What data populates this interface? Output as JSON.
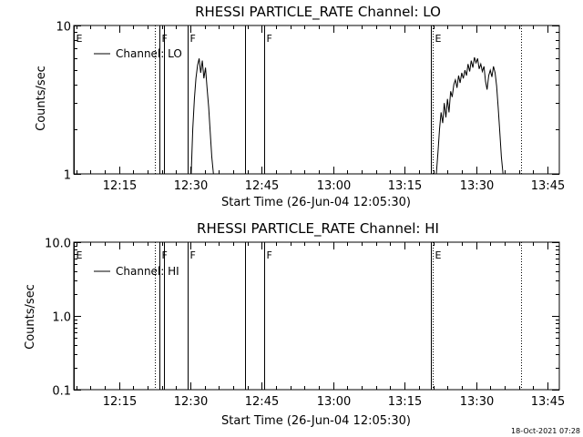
{
  "footer": {
    "timestamp": "18-Oct-2021 07:28"
  },
  "chart_data": [
    {
      "type": "line",
      "title": "RHESSI PARTICLE_RATE Channel: LO",
      "xlabel": "Start Time (26-Jun-04 12:05:30)",
      "ylabel": "Counts/sec",
      "yscale": "log",
      "ylim": [
        1,
        10
      ],
      "xlim": [
        "12:05:30",
        "13:47:30"
      ],
      "yticks": [
        {
          "value": 1,
          "label": "1"
        },
        {
          "value": 10,
          "label": "10"
        }
      ],
      "xticks": [
        "12:15",
        "12:30",
        "12:45",
        "13:00",
        "13:15",
        "13:30",
        "13:45"
      ],
      "legend": {
        "position": "top-left",
        "entries": [
          "Channel: LO"
        ]
      },
      "grid": false,
      "markers": [
        {
          "time": "12:05:30",
          "label": "E",
          "style": "solid"
        },
        {
          "time": "12:22:30",
          "label": "",
          "style": "dotted"
        },
        {
          "time": "12:23:30",
          "label": "F",
          "style": "solid"
        },
        {
          "time": "12:24:30",
          "label": "",
          "style": "solid"
        },
        {
          "time": "12:29:30",
          "label": "F",
          "style": "solid"
        },
        {
          "time": "12:41:30",
          "label": "",
          "style": "solid"
        },
        {
          "time": "12:45:30",
          "label": "F",
          "style": "solid"
        },
        {
          "time": "13:20:30",
          "label": "",
          "style": "solid"
        },
        {
          "time": "13:20:50",
          "label": "E",
          "style": "dotted"
        },
        {
          "time": "13:39:30",
          "label": "",
          "style": "dotted"
        }
      ],
      "series": [
        {
          "name": "Channel: LO",
          "segments": [
            {
              "x": [
                "12:30:10",
                "12:30:30",
                "12:30:50",
                "12:31:10",
                "12:31:30",
                "12:31:50",
                "12:32:10",
                "12:32:30",
                "12:32:50",
                "12:33:10",
                "12:33:30",
                "12:33:50",
                "12:34:10",
                "12:34:30",
                "12:34:50"
              ],
              "y": [
                1.0,
                2.0,
                3.2,
                4.4,
                5.4,
                6.0,
                4.8,
                5.8,
                4.4,
                5.2,
                3.8,
                2.8,
                1.9,
                1.3,
                1.0
              ]
            },
            {
              "x": [
                "13:21:40",
                "13:22:00",
                "13:22:20",
                "13:22:40",
                "13:23:00",
                "13:23:20",
                "13:23:40",
                "13:24:00",
                "13:24:20",
                "13:24:40",
                "13:25:00",
                "13:25:20",
                "13:25:40",
                "13:26:00",
                "13:26:20",
                "13:26:40",
                "13:27:00",
                "13:27:20",
                "13:27:40",
                "13:28:00",
                "13:28:20",
                "13:28:40",
                "13:29:00",
                "13:29:20",
                "13:29:40",
                "13:30:00",
                "13:30:20",
                "13:30:40",
                "13:31:00",
                "13:31:20",
                "13:31:40",
                "13:32:00",
                "13:32:20",
                "13:32:40",
                "13:33:00",
                "13:33:20",
                "13:33:40",
                "13:34:00",
                "13:34:20",
                "13:34:40",
                "13:35:00",
                "13:35:20",
                "13:35:40"
              ],
              "y": [
                1.0,
                1.4,
                2.0,
                2.6,
                2.2,
                3.0,
                2.4,
                3.2,
                2.6,
                3.6,
                3.3,
                4.0,
                4.3,
                3.8,
                4.6,
                4.1,
                4.8,
                4.4,
                5.0,
                4.6,
                5.5,
                4.9,
                5.8,
                5.2,
                6.1,
                5.6,
                6.0,
                5.1,
                5.5,
                4.9,
                5.3,
                4.2,
                3.7,
                4.6,
                5.0,
                4.5,
                5.3,
                4.8,
                3.9,
                2.8,
                1.9,
                1.3,
                1.0
              ]
            }
          ]
        }
      ]
    },
    {
      "type": "line",
      "title": "RHESSI PARTICLE_RATE Channel: HI",
      "xlabel": "Start Time (26-Jun-04 12:05:30)",
      "ylabel": "Counts/sec",
      "yscale": "log",
      "ylim": [
        0.1,
        10
      ],
      "xlim": [
        "12:05:30",
        "13:47:30"
      ],
      "yticks": [
        {
          "value": 0.1,
          "label": "0.1"
        },
        {
          "value": 1,
          "label": "1.0"
        },
        {
          "value": 10,
          "label": "10.0"
        }
      ],
      "xticks": [
        "12:15",
        "12:30",
        "12:45",
        "13:00",
        "13:15",
        "13:30",
        "13:45"
      ],
      "legend": {
        "position": "top-left",
        "entries": [
          "Channel: HI"
        ]
      },
      "grid": false,
      "markers": [
        {
          "time": "12:05:30",
          "label": "E",
          "style": "solid"
        },
        {
          "time": "12:22:30",
          "label": "",
          "style": "dotted"
        },
        {
          "time": "12:23:30",
          "label": "F",
          "style": "solid"
        },
        {
          "time": "12:24:30",
          "label": "",
          "style": "solid"
        },
        {
          "time": "12:29:30",
          "label": "F",
          "style": "solid"
        },
        {
          "time": "12:41:30",
          "label": "",
          "style": "solid"
        },
        {
          "time": "12:45:30",
          "label": "F",
          "style": "solid"
        },
        {
          "time": "13:20:30",
          "label": "",
          "style": "solid"
        },
        {
          "time": "13:20:50",
          "label": "E",
          "style": "dotted"
        },
        {
          "time": "13:39:30",
          "label": "",
          "style": "dotted"
        }
      ],
      "series": [
        {
          "name": "Channel: HI",
          "segments": []
        }
      ]
    }
  ]
}
